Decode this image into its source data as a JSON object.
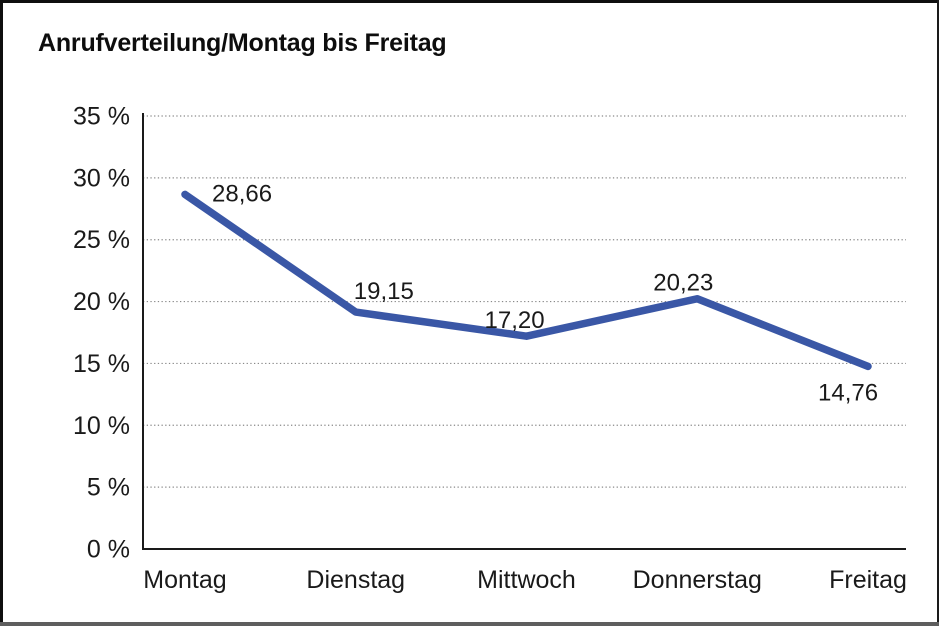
{
  "page": {
    "background": "#ffffff",
    "frame_border_color": "#0f0f0f"
  },
  "chart_data": {
    "type": "line",
    "title": "Anrufverteilung/Montag bis Freitag",
    "categories": [
      "Montag",
      "Dienstag",
      "Mittwoch",
      "Donnerstag",
      "Freitag"
    ],
    "series": [
      {
        "name": "Anrufverteilung",
        "values": [
          28.66,
          19.15,
          17.2,
          20.23,
          14.76
        ],
        "point_labels": [
          "28,66",
          "19,15",
          "17,20",
          "20,23",
          "14,76"
        ]
      }
    ],
    "xlabel": "",
    "ylabel": "",
    "ylim": [
      0,
      35
    ],
    "y_step": 5,
    "y_ticks": [
      "35 %",
      "30 %",
      "25 %",
      "20 %",
      "15 %",
      "10 %",
      "5 %",
      "0 %"
    ],
    "grid": "horizontal-dotted",
    "legend": "none",
    "line_color": "#3a57a6",
    "axis_color": "#1a1a1a",
    "gridline_color": "#8a8a8a",
    "text_color": "#1a1a1a"
  }
}
